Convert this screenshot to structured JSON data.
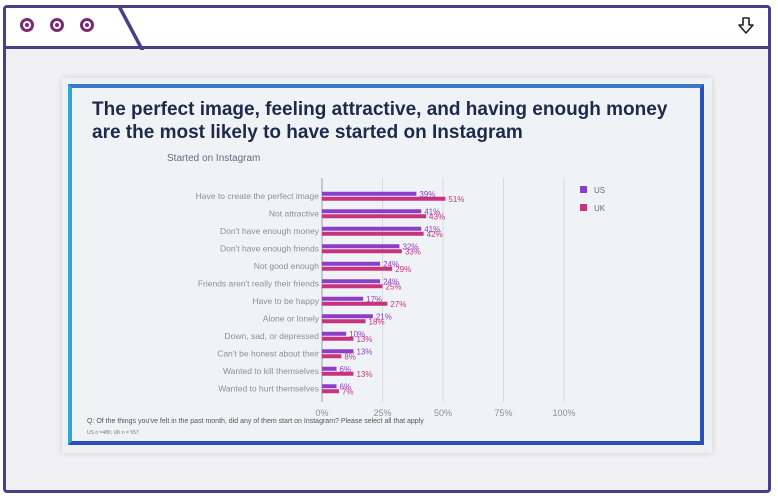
{
  "window": {
    "icons": [
      "window-dot-icon",
      "window-dot-icon",
      "window-dot-icon",
      "download-icon"
    ]
  },
  "slide": {
    "title": "The perfect image, feeling attractive, and having enough money are the most likely to have started on Instagram",
    "subtitle": "Started on Instagram",
    "footnote": "Q: Of the things you've felt in the past month, did any of them start on Instagram? Please select all that apply",
    "footnote2": "US n =486; UK n = 557"
  },
  "chart_data": {
    "type": "bar",
    "orientation": "horizontal",
    "categories": [
      "Have to create the perfect image",
      "Not attractive",
      "Don't have enough money",
      "Don't have enough friends",
      "Not good enough",
      "Friends aren't really their friends",
      "Have to be happy",
      "Alone or lonely",
      "Down, sad, or depressed",
      "Can't be honest about their",
      "Wanted to kill themselves",
      "Wanted to hurt themselves"
    ],
    "series": [
      {
        "name": "US",
        "color": "#8b3fc8",
        "values": [
          39,
          41,
          41,
          32,
          24,
          24,
          17,
          21,
          10,
          13,
          6,
          6
        ],
        "labels": [
          "39%",
          "41%",
          "41%",
          "32%",
          "24%",
          "24%",
          "17%",
          "21%",
          "10%",
          "13%",
          "6%",
          "6%"
        ]
      },
      {
        "name": "UK",
        "color": "#c8337d",
        "values": [
          51,
          43,
          42,
          33,
          29,
          25,
          27,
          18,
          13,
          8,
          13,
          7
        ],
        "labels": [
          "51%",
          "43%",
          "42%",
          "33%",
          "29%",
          "25%",
          "27%",
          "18%",
          "13%",
          "8%",
          "13%",
          "7%"
        ]
      }
    ],
    "xlim": [
      0,
      100
    ],
    "xticks": [
      "0%",
      "25%",
      "50%",
      "75%",
      "100%"
    ],
    "legend": "top-right",
    "grid": true
  }
}
